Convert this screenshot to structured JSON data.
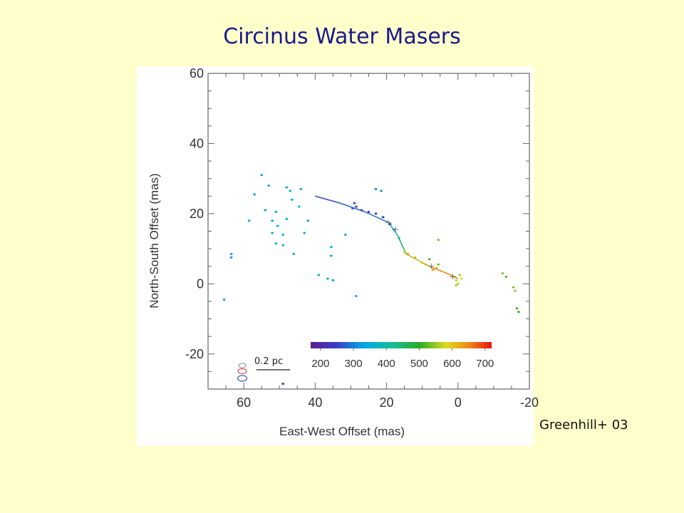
{
  "slide": {
    "title": "Circinus Water Masers",
    "credit": "Greenhill+ 03"
  },
  "chart_data": {
    "type": "scatter",
    "title": "",
    "xlabel": "East-West Offset (mas)",
    "ylabel": "North-South Offset (mas)",
    "xlim": [
      70,
      -20
    ],
    "ylim": [
      -30,
      60
    ],
    "x_ticks": [
      60,
      40,
      20,
      0,
      -20
    ],
    "y_ticks": [
      60,
      40,
      20,
      0,
      -20
    ],
    "x_tick_labels": [
      "60",
      "40",
      "20",
      "0",
      "-20"
    ],
    "y_tick_labels": [
      "60",
      "40",
      "20",
      "0",
      "-20"
    ],
    "colorbar": {
      "ticks": [
        200,
        300,
        400,
        500,
        600,
        700
      ],
      "tick_labels": [
        "200",
        "300",
        "400",
        "500",
        "600",
        "700"
      ],
      "range": [
        170,
        720
      ]
    },
    "scale_bar": {
      "label": "0.2 pc",
      "length_mas": 9.5
    },
    "beam_colors": [
      "#d9534f",
      "#3b5bb5"
    ],
    "disk_fit": [
      {
        "x": 40.0,
        "y": 25.0,
        "v": 250
      },
      {
        "x": 33.0,
        "y": 23.0,
        "v": 265
      },
      {
        "x": 26.0,
        "y": 20.5,
        "v": 285
      },
      {
        "x": 19.5,
        "y": 17.5,
        "v": 300
      },
      {
        "x": 17.0,
        "y": 14.0,
        "v": 420
      },
      {
        "x": 14.5,
        "y": 8.5,
        "v": 470
      },
      {
        "x": 8.0,
        "y": 5.0,
        "v": 640
      },
      {
        "x": 2.0,
        "y": 2.5,
        "v": 660
      },
      {
        "x": 0.0,
        "y": 1.5,
        "v": 670
      }
    ],
    "points": [
      {
        "x": 29.0,
        "y": 23.0,
        "v": 260
      },
      {
        "x": 28.5,
        "y": 22.0,
        "v": 255
      },
      {
        "x": 29.5,
        "y": 21.5,
        "v": 270
      },
      {
        "x": 27.0,
        "y": 21.0,
        "v": 250
      },
      {
        "x": 25.0,
        "y": 20.5,
        "v": 240
      },
      {
        "x": 23.0,
        "y": 20.0,
        "v": 230
      },
      {
        "x": 21.0,
        "y": 19.0,
        "v": 240
      },
      {
        "x": 19.0,
        "y": 17.0,
        "v": 250
      },
      {
        "x": 18.0,
        "y": 15.5,
        "v": 380
      },
      {
        "x": 16.5,
        "y": 13.0,
        "v": 430
      },
      {
        "x": 15.0,
        "y": 9.0,
        "v": 600
      },
      {
        "x": 14.0,
        "y": 8.5,
        "v": 640
      },
      {
        "x": 12.0,
        "y": 7.5,
        "v": 620
      },
      {
        "x": 10.0,
        "y": 6.0,
        "v": 610
      },
      {
        "x": 9.0,
        "y": 5.5,
        "v": 630
      },
      {
        "x": 7.0,
        "y": 4.0,
        "v": 640
      },
      {
        "x": 6.0,
        "y": 4.5,
        "v": 560
      },
      {
        "x": 5.5,
        "y": 5.5,
        "v": 540
      },
      {
        "x": 1.0,
        "y": 2.0,
        "v": 560
      },
      {
        "x": 0.5,
        "y": 1.0,
        "v": 570
      },
      {
        "x": -0.5,
        "y": 2.5,
        "v": 560
      },
      {
        "x": 0.0,
        "y": 0.0,
        "v": 560
      },
      {
        "x": -1.0,
        "y": 1.5,
        "v": 580
      },
      {
        "x": 0.5,
        "y": -0.5,
        "v": 565
      },
      {
        "x": 5.5,
        "y": 12.5,
        "v": 640
      },
      {
        "x": 8.0,
        "y": 7.0,
        "v": 520
      },
      {
        "x": 23.0,
        "y": 27.0,
        "v": 300
      },
      {
        "x": 21.5,
        "y": 26.5,
        "v": 310
      },
      {
        "x": 55.0,
        "y": 31.0,
        "v": 330
      },
      {
        "x": 53.0,
        "y": 28.0,
        "v": 340
      },
      {
        "x": 48.0,
        "y": 27.5,
        "v": 350
      },
      {
        "x": 47.0,
        "y": 26.5,
        "v": 360
      },
      {
        "x": 44.0,
        "y": 27.0,
        "v": 340
      },
      {
        "x": 46.5,
        "y": 24.0,
        "v": 360
      },
      {
        "x": 57.0,
        "y": 25.5,
        "v": 330
      },
      {
        "x": 54.0,
        "y": 21.0,
        "v": 340
      },
      {
        "x": 51.0,
        "y": 20.5,
        "v": 350
      },
      {
        "x": 44.5,
        "y": 22.0,
        "v": 340
      },
      {
        "x": 52.0,
        "y": 18.0,
        "v": 350
      },
      {
        "x": 50.5,
        "y": 16.5,
        "v": 355
      },
      {
        "x": 48.0,
        "y": 18.5,
        "v": 345
      },
      {
        "x": 42.0,
        "y": 18.0,
        "v": 350
      },
      {
        "x": 58.5,
        "y": 18.0,
        "v": 340
      },
      {
        "x": 52.0,
        "y": 14.5,
        "v": 350
      },
      {
        "x": 49.0,
        "y": 14.0,
        "v": 360
      },
      {
        "x": 51.0,
        "y": 11.5,
        "v": 350
      },
      {
        "x": 49.0,
        "y": 11.0,
        "v": 360
      },
      {
        "x": 46.0,
        "y": 8.5,
        "v": 370
      },
      {
        "x": 43.0,
        "y": 14.5,
        "v": 360
      },
      {
        "x": 31.5,
        "y": 14.0,
        "v": 340
      },
      {
        "x": 35.5,
        "y": 10.5,
        "v": 360
      },
      {
        "x": 35.5,
        "y": 8.0,
        "v": 360
      },
      {
        "x": 63.5,
        "y": 8.5,
        "v": 330
      },
      {
        "x": 63.5,
        "y": 7.5,
        "v": 320
      },
      {
        "x": 39.0,
        "y": 2.5,
        "v": 360
      },
      {
        "x": 36.5,
        "y": 1.5,
        "v": 370
      },
      {
        "x": 35.0,
        "y": 1.0,
        "v": 365
      },
      {
        "x": 28.5,
        "y": -3.5,
        "v": 380
      },
      {
        "x": 65.5,
        "y": -4.5,
        "v": 330
      },
      {
        "x": 49.0,
        "y": -28.5,
        "v": 230
      },
      {
        "x": -12.5,
        "y": 3.0,
        "v": 540
      },
      {
        "x": -13.5,
        "y": 2.0,
        "v": 520
      },
      {
        "x": -15.5,
        "y": -1.0,
        "v": 540
      },
      {
        "x": -16.0,
        "y": -2.0,
        "v": 550
      },
      {
        "x": -16.5,
        "y": -7.0,
        "v": 520
      },
      {
        "x": -17.0,
        "y": -8.0,
        "v": 510
      }
    ]
  }
}
